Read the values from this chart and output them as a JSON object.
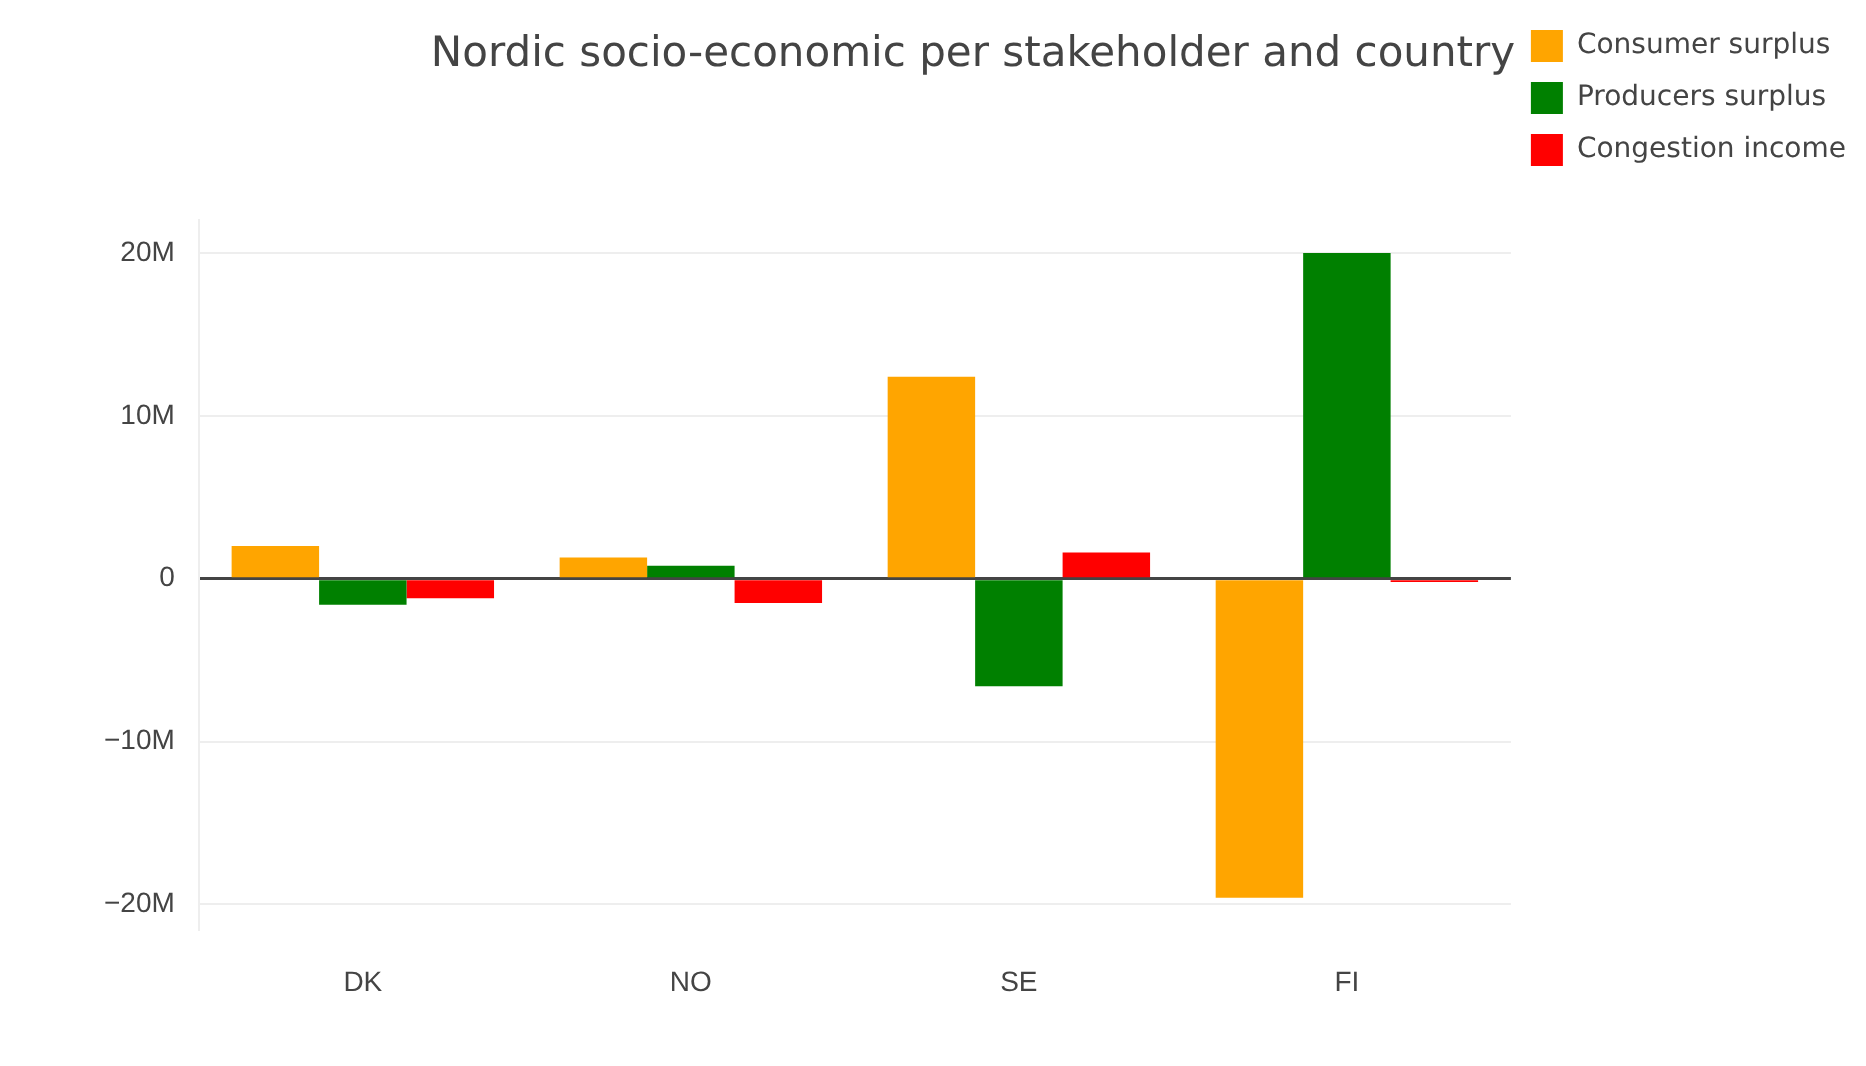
{
  "chart_data": {
    "type": "bar",
    "title": "Nordic socio-economic per stakeholder and country",
    "categories": [
      "DK",
      "NO",
      "SE",
      "FI"
    ],
    "series": [
      {
        "name": "Consumer surplus",
        "color": "#ffa500",
        "values": [
          2000000,
          1300000,
          12400000,
          -19600000
        ]
      },
      {
        "name": "Producers surplus",
        "color": "#008000",
        "values": [
          -1600000,
          800000,
          -6600000,
          20000000
        ]
      },
      {
        "name": "Congestion income",
        "color": "#ff0000",
        "values": [
          -1200000,
          -1500000,
          1600000,
          -200000
        ]
      }
    ],
    "ylim": [
      -21600000,
      22000000
    ],
    "yticks": [
      {
        "value": -20000000,
        "label": "−20M"
      },
      {
        "value": -10000000,
        "label": "−10M"
      },
      0,
      {
        "value": 10000000,
        "label": "10M"
      },
      {
        "value": 20000000,
        "label": "20M"
      }
    ],
    "grid": "y",
    "legend": "top right"
  }
}
